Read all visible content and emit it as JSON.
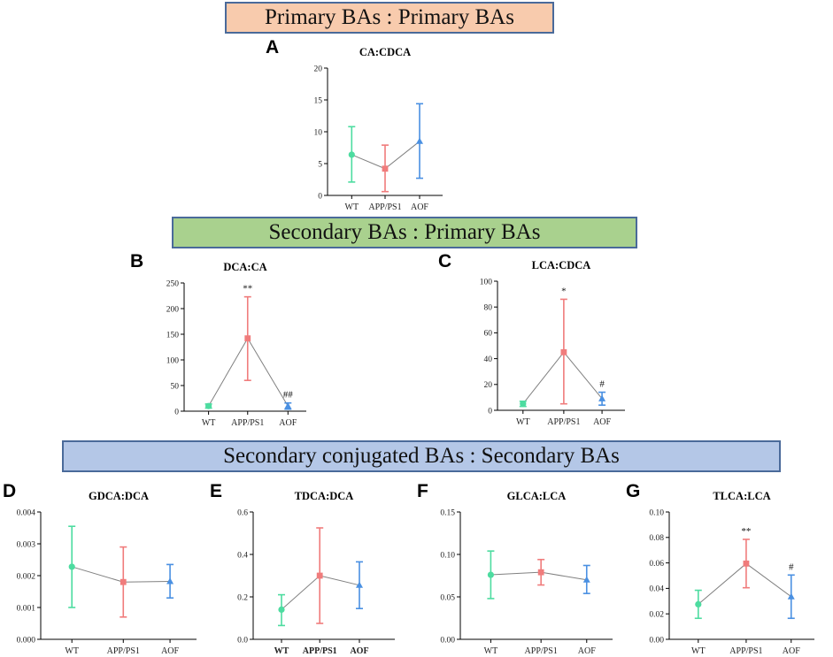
{
  "banners": {
    "primary": "Primary BAs : Primary BAs",
    "secondary": "Secondary BAs : Primary BAs",
    "conjugated": "Secondary conjugated BAs : Secondary BAs"
  },
  "colors": {
    "primary_bg": "#f8cbad",
    "secondary_bg": "#a9d18e",
    "conjugated_bg": "#b4c7e7",
    "WT": "#4ddca0",
    "APP/PS1": "#f07c7c",
    "AOF": "#4a90e2",
    "line": "#808080"
  },
  "chart_data": [
    {
      "panel": "A",
      "title": "CA:CDCA",
      "type": "line",
      "categories": [
        "WT",
        "APP/PS1",
        "AOF"
      ],
      "values": [
        6.4,
        4.2,
        8.5
      ],
      "errors": [
        [
          2.1,
          10.8
        ],
        [
          0.6,
          7.9
        ],
        [
          2.7,
          14.4
        ]
      ],
      "ylim": [
        0,
        20
      ],
      "yticks": [
        "0",
        "5",
        "10",
        "15",
        "20"
      ],
      "annotations": [
        "",
        "",
        ""
      ],
      "bold_x": false
    },
    {
      "panel": "B",
      "title": "DCA:CA",
      "type": "line",
      "categories": [
        "WT",
        "APP/PS1",
        "AOF"
      ],
      "values": [
        10,
        142,
        10
      ],
      "errors": [
        [
          6,
          14
        ],
        [
          60,
          223
        ],
        [
          4,
          16
        ]
      ],
      "ylim": [
        0,
        250
      ],
      "yticks": [
        "0",
        "50",
        "100",
        "150",
        "200",
        "250"
      ],
      "annotations": [
        "",
        "**",
        "##"
      ],
      "bold_x": false
    },
    {
      "panel": "C",
      "title": "LCA:CDCA",
      "type": "line",
      "categories": [
        "WT",
        "APP/PS1",
        "AOF"
      ],
      "values": [
        5,
        45,
        9
      ],
      "errors": [
        [
          3,
          7
        ],
        [
          5,
          86
        ],
        [
          4,
          14
        ]
      ],
      "ylim": [
        0,
        100
      ],
      "yticks": [
        "0",
        "20",
        "40",
        "60",
        "80",
        "100"
      ],
      "annotations": [
        "",
        "*",
        "#"
      ],
      "bold_x": false
    },
    {
      "panel": "D",
      "title": "GDCA:DCA",
      "type": "line",
      "categories": [
        "WT",
        "APP/PS1",
        "AOF"
      ],
      "values": [
        0.00228,
        0.0018,
        0.00182
      ],
      "errors": [
        [
          0.001,
          0.00355
        ],
        [
          0.0007,
          0.0029
        ],
        [
          0.0013,
          0.00235
        ]
      ],
      "ylim": [
        0,
        0.004
      ],
      "yticks": [
        "0.000",
        "0.001",
        "0.002",
        "0.003",
        "0.004"
      ],
      "annotations": [
        "",
        "",
        ""
      ],
      "bold_x": false
    },
    {
      "panel": "E",
      "title": "TDCA:DCA",
      "type": "line",
      "categories": [
        "WT",
        "APP/PS1",
        "AOF"
      ],
      "values": [
        0.14,
        0.3,
        0.255
      ],
      "errors": [
        [
          0.065,
          0.21
        ],
        [
          0.075,
          0.525
        ],
        [
          0.145,
          0.365
        ]
      ],
      "ylim": [
        0,
        0.6
      ],
      "yticks": [
        "0.0",
        "0.2",
        "0.4",
        "0.6"
      ],
      "annotations": [
        "",
        "",
        ""
      ],
      "bold_x": true
    },
    {
      "panel": "F",
      "title": "GLCA:LCA",
      "type": "line",
      "categories": [
        "WT",
        "APP/PS1",
        "AOF"
      ],
      "values": [
        0.076,
        0.079,
        0.07
      ],
      "errors": [
        [
          0.048,
          0.104
        ],
        [
          0.064,
          0.094
        ],
        [
          0.054,
          0.087
        ]
      ],
      "ylim": [
        0,
        0.15
      ],
      "yticks": [
        "0.00",
        "0.05",
        "0.10",
        "0.15"
      ],
      "annotations": [
        "",
        "",
        ""
      ],
      "bold_x": false
    },
    {
      "panel": "G",
      "title": "TLCA:LCA",
      "type": "line",
      "categories": [
        "WT",
        "APP/PS1",
        "AOF"
      ],
      "values": [
        0.0275,
        0.0595,
        0.0335
      ],
      "errors": [
        [
          0.0165,
          0.0385
        ],
        [
          0.0405,
          0.0785
        ],
        [
          0.0165,
          0.0505
        ]
      ],
      "ylim": [
        0,
        0.1
      ],
      "yticks": [
        "0.00",
        "0.02",
        "0.04",
        "0.06",
        "0.08",
        "0.10"
      ],
      "annotations": [
        "",
        "**",
        "#"
      ],
      "bold_x": false
    }
  ]
}
